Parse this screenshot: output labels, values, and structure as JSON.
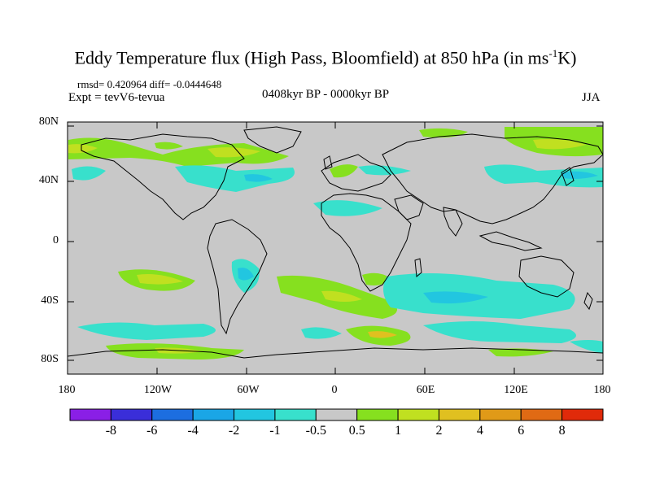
{
  "title": {
    "main": "Eddy Temperature flux (High Pass, Bloomfield) at 850 hPa (in ms",
    "sup": "-1",
    "end": "K)"
  },
  "stats_text": "rmsd= 0.420964 diff= -0.0444648",
  "expt_text": "Expt = tevV6-tevua",
  "period_text": "0408kyr BP - 0000kyr BP",
  "season_text": "JJA",
  "lat_labels": [
    "80N",
    "40N",
    "0",
    "40S",
    "80S"
  ],
  "lon_labels": [
    "180",
    "120W",
    "60W",
    "0",
    "60E",
    "120E",
    "180"
  ],
  "colorbar": {
    "labels": [
      "-8",
      "-6",
      "-4",
      "-2",
      "-1",
      "-0.5",
      "0.5",
      "1",
      "2",
      "4",
      "6",
      "8"
    ],
    "colors": [
      "#8a1fe6",
      "#3a2ed9",
      "#1c6ee0",
      "#1aa6e6",
      "#22c6e0",
      "#38e0cc",
      "#c8c8c8",
      "#86e01f",
      "#c0e020",
      "#e0c020",
      "#e09a18",
      "#e06a14",
      "#e02a0a"
    ]
  },
  "map_colors": {
    "background": "#c8c8c8",
    "coastline": "#000000"
  }
}
